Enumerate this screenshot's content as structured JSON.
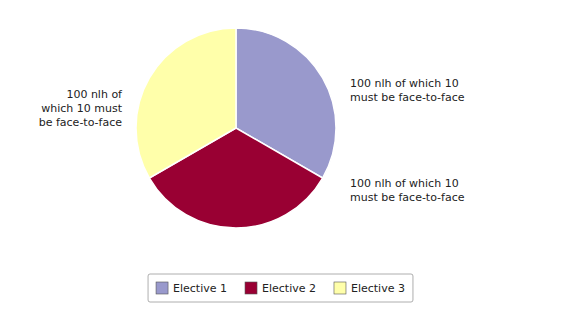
{
  "chart_data": {
    "type": "pie",
    "categories": [
      "Elective 1",
      "Elective 2",
      "Elective 3"
    ],
    "values": [
      1,
      1,
      1
    ],
    "colors": [
      "#9999CC",
      "#990033",
      "#FFFFAA"
    ],
    "annotations": [
      {
        "text": "100 nlh of which 10\nmust be face-to-face"
      },
      {
        "text": "100 nlh of which 10\nmust be face-to-face"
      },
      {
        "text": "100 nlh of\nwhich 10 must\nbe face-to-face"
      }
    ],
    "legend": "bottom"
  }
}
